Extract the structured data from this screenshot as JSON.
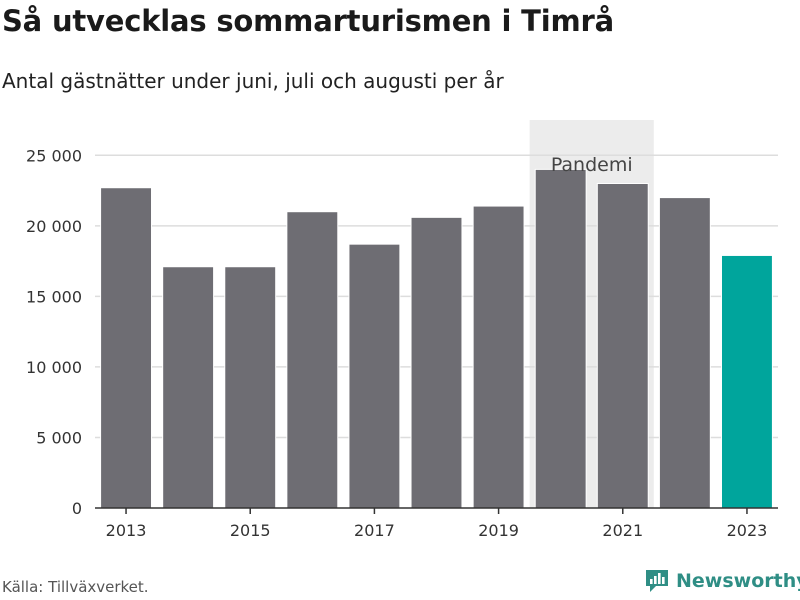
{
  "title": "Så utvecklas sommarturismen i Timrå",
  "subtitle": "Antal gästnätter under juni, juli och augusti per år",
  "source": "Källa: Tillväxverket.",
  "brand": "Newsworthy",
  "colors": {
    "bar": "#6e6d73",
    "highlight": "#00a59c",
    "band": "#ececec",
    "grid": "#dddddd",
    "brand": "#2f8e85"
  },
  "chart_data": {
    "type": "bar",
    "title": "Så utvecklas sommarturismen i Timrå",
    "subtitle": "Antal gästnätter under juni, juli och augusti per år",
    "categories": [
      2013,
      2014,
      2015,
      2016,
      2017,
      2018,
      2019,
      2020,
      2021,
      2022,
      2023
    ],
    "values": [
      22700,
      17100,
      17100,
      21000,
      18700,
      20600,
      21400,
      24000,
      23000,
      22000,
      17900
    ],
    "highlight_index": 10,
    "ylim": [
      0,
      27500
    ],
    "yticks": [
      0,
      5000,
      10000,
      15000,
      20000,
      25000
    ],
    "ytick_labels": [
      "0",
      "5 000",
      "10 000",
      "15 000",
      "20 000",
      "25 000"
    ],
    "xtick_labels": [
      "2013",
      "2015",
      "2017",
      "2019",
      "2021",
      "2023"
    ],
    "grid": true,
    "annotation": {
      "label": "Pandemi",
      "from": 2020,
      "to": 2021
    }
  }
}
